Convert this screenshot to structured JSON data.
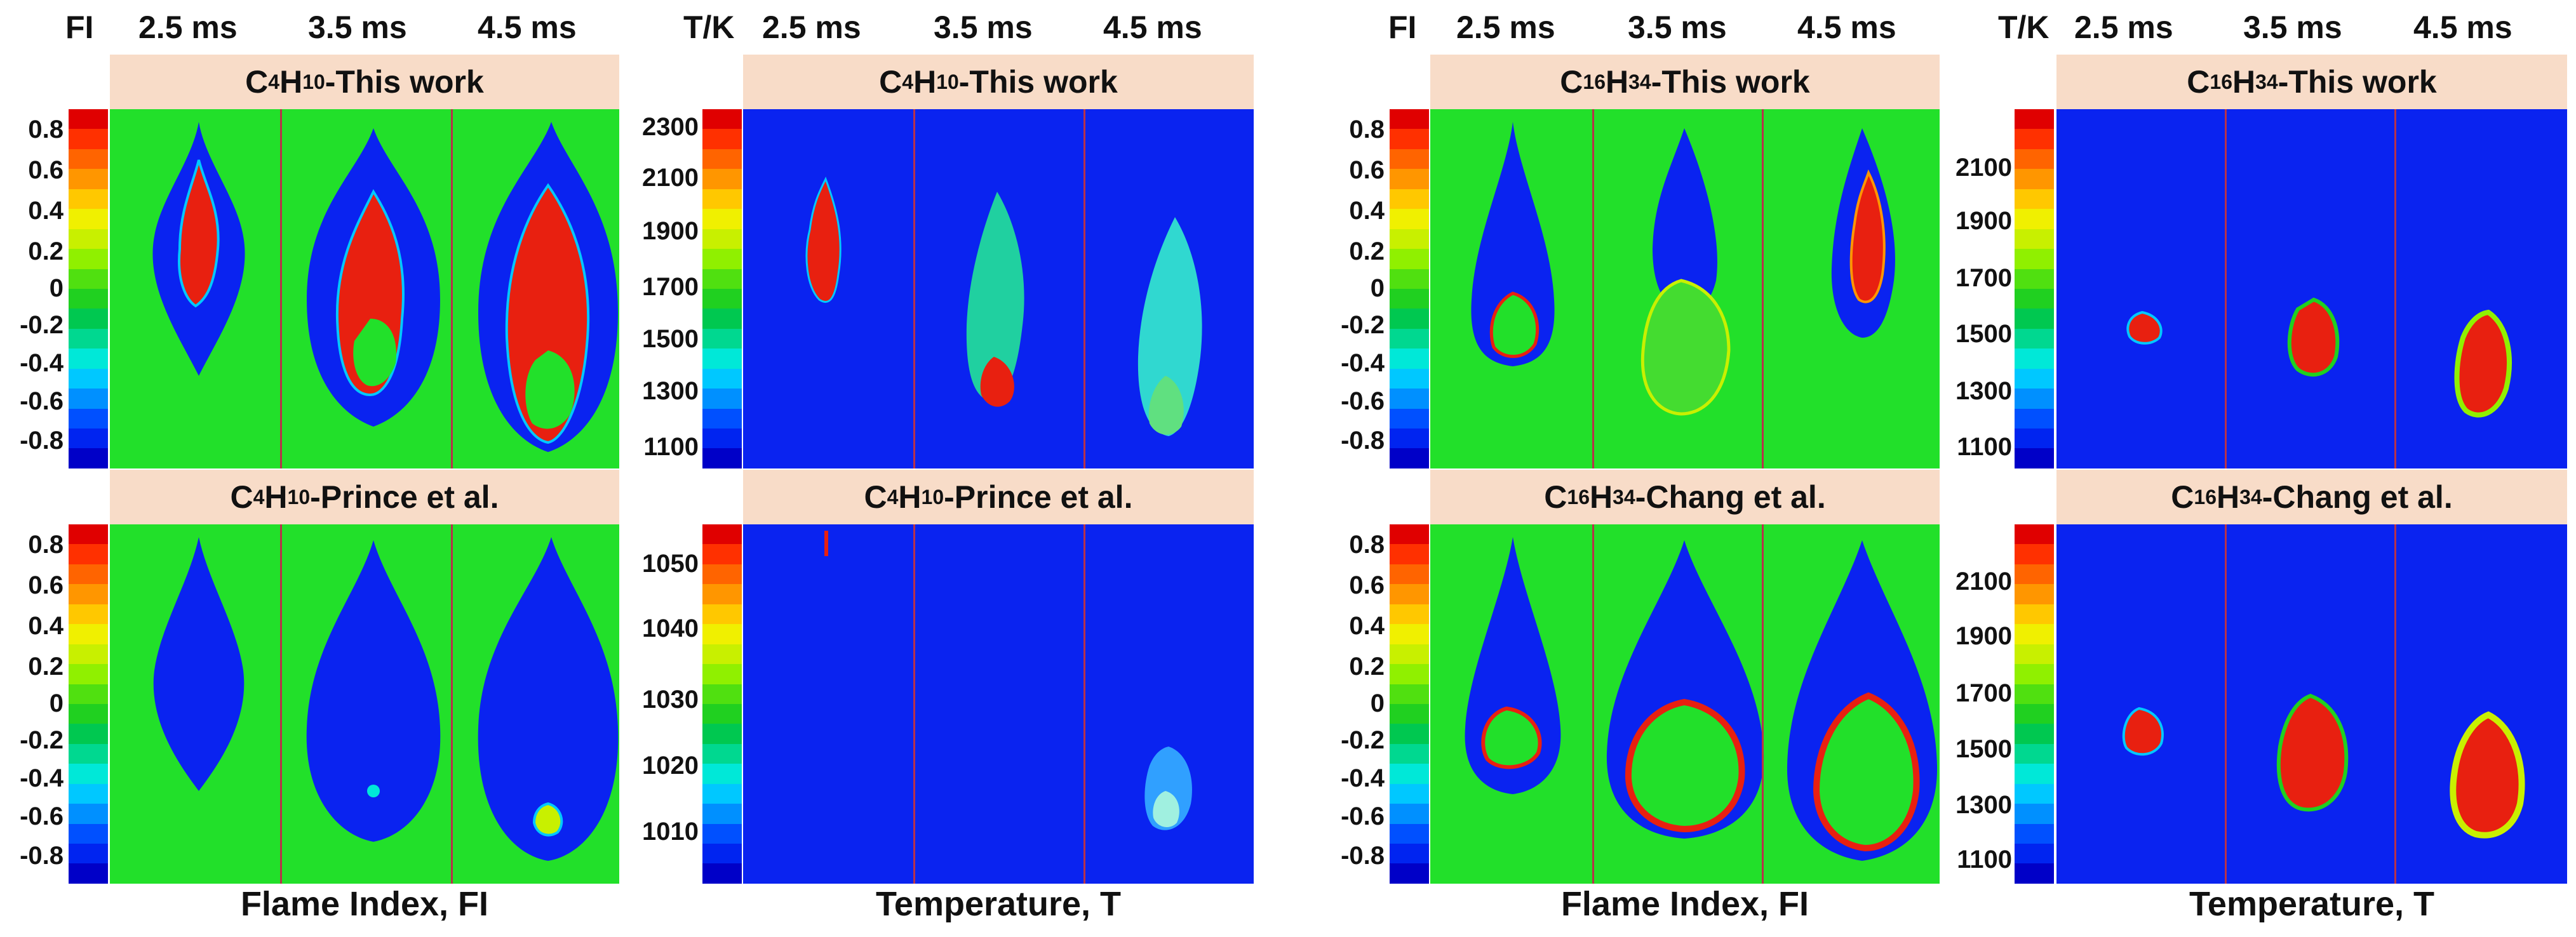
{
  "colors": {
    "title_bg": "#f8dcc8",
    "fi_bg": "#22e02a",
    "temp_bg": "#0a23f0",
    "separator": "#b8324a",
    "colorbar": [
      "#0000c8",
      "#0024f0",
      "#0050ff",
      "#0090ff",
      "#00c8ff",
      "#00e8d8",
      "#00d890",
      "#00c850",
      "#20d020",
      "#50e010",
      "#90f000",
      "#c8f000",
      "#f0f000",
      "#ffc800",
      "#ff9600",
      "#ff6400",
      "#ff3000",
      "#e00000"
    ]
  },
  "column_headers": {
    "fi": "FI",
    "tk": "T/K",
    "times": [
      "2.5 ms",
      "3.5 ms",
      "4.5 ms"
    ]
  },
  "panels": {
    "c4_fi_top": {
      "prefix": "C",
      "s1": "4",
      "mid": "H",
      "s2": "10",
      "suffix": "-This work"
    },
    "c4_t_top": {
      "prefix": "C",
      "s1": "4",
      "mid": "H",
      "s2": "10",
      "suffix": "-This work"
    },
    "c4_fi_bot": {
      "prefix": "C",
      "s1": "4",
      "mid": "H",
      "s2": "10",
      "suffix": "-Prince et al."
    },
    "c4_t_bot": {
      "prefix": "C",
      "s1": "4",
      "mid": "H",
      "s2": "10",
      "suffix": "-Prince et al."
    },
    "c16_fi_top": {
      "prefix": "C",
      "s1": "16",
      "mid": "H",
      "s2": "34",
      "suffix": "-This work"
    },
    "c16_t_top": {
      "prefix": "C",
      "s1": "16",
      "mid": "H",
      "s2": "34",
      "suffix": "-This work"
    },
    "c16_fi_bot": {
      "prefix": "C",
      "s1": "16",
      "mid": "H",
      "s2": "34",
      "suffix": "-Chang et al."
    },
    "c16_t_bot": {
      "prefix": "C",
      "s1": "16",
      "mid": "H",
      "s2": "34",
      "suffix": "-Chang et al."
    }
  },
  "scales": {
    "fi": [
      "0.8",
      "0.6",
      "0.4",
      "0.2",
      "0",
      "-0.2",
      "-0.4",
      "-0.6",
      "-0.8"
    ],
    "c4_t_top": [
      "2300",
      "2100",
      "1900",
      "1700",
      "1500",
      "1300",
      "1100"
    ],
    "c4_t_bot": [
      "1050",
      "1040",
      "1030",
      "1020",
      "1010"
    ],
    "c16_t": [
      "2100",
      "1900",
      "1700",
      "1500",
      "1300",
      "1100"
    ]
  },
  "xlabels": {
    "fi": "Flame Index, FI",
    "temp": "Temperature, T"
  }
}
